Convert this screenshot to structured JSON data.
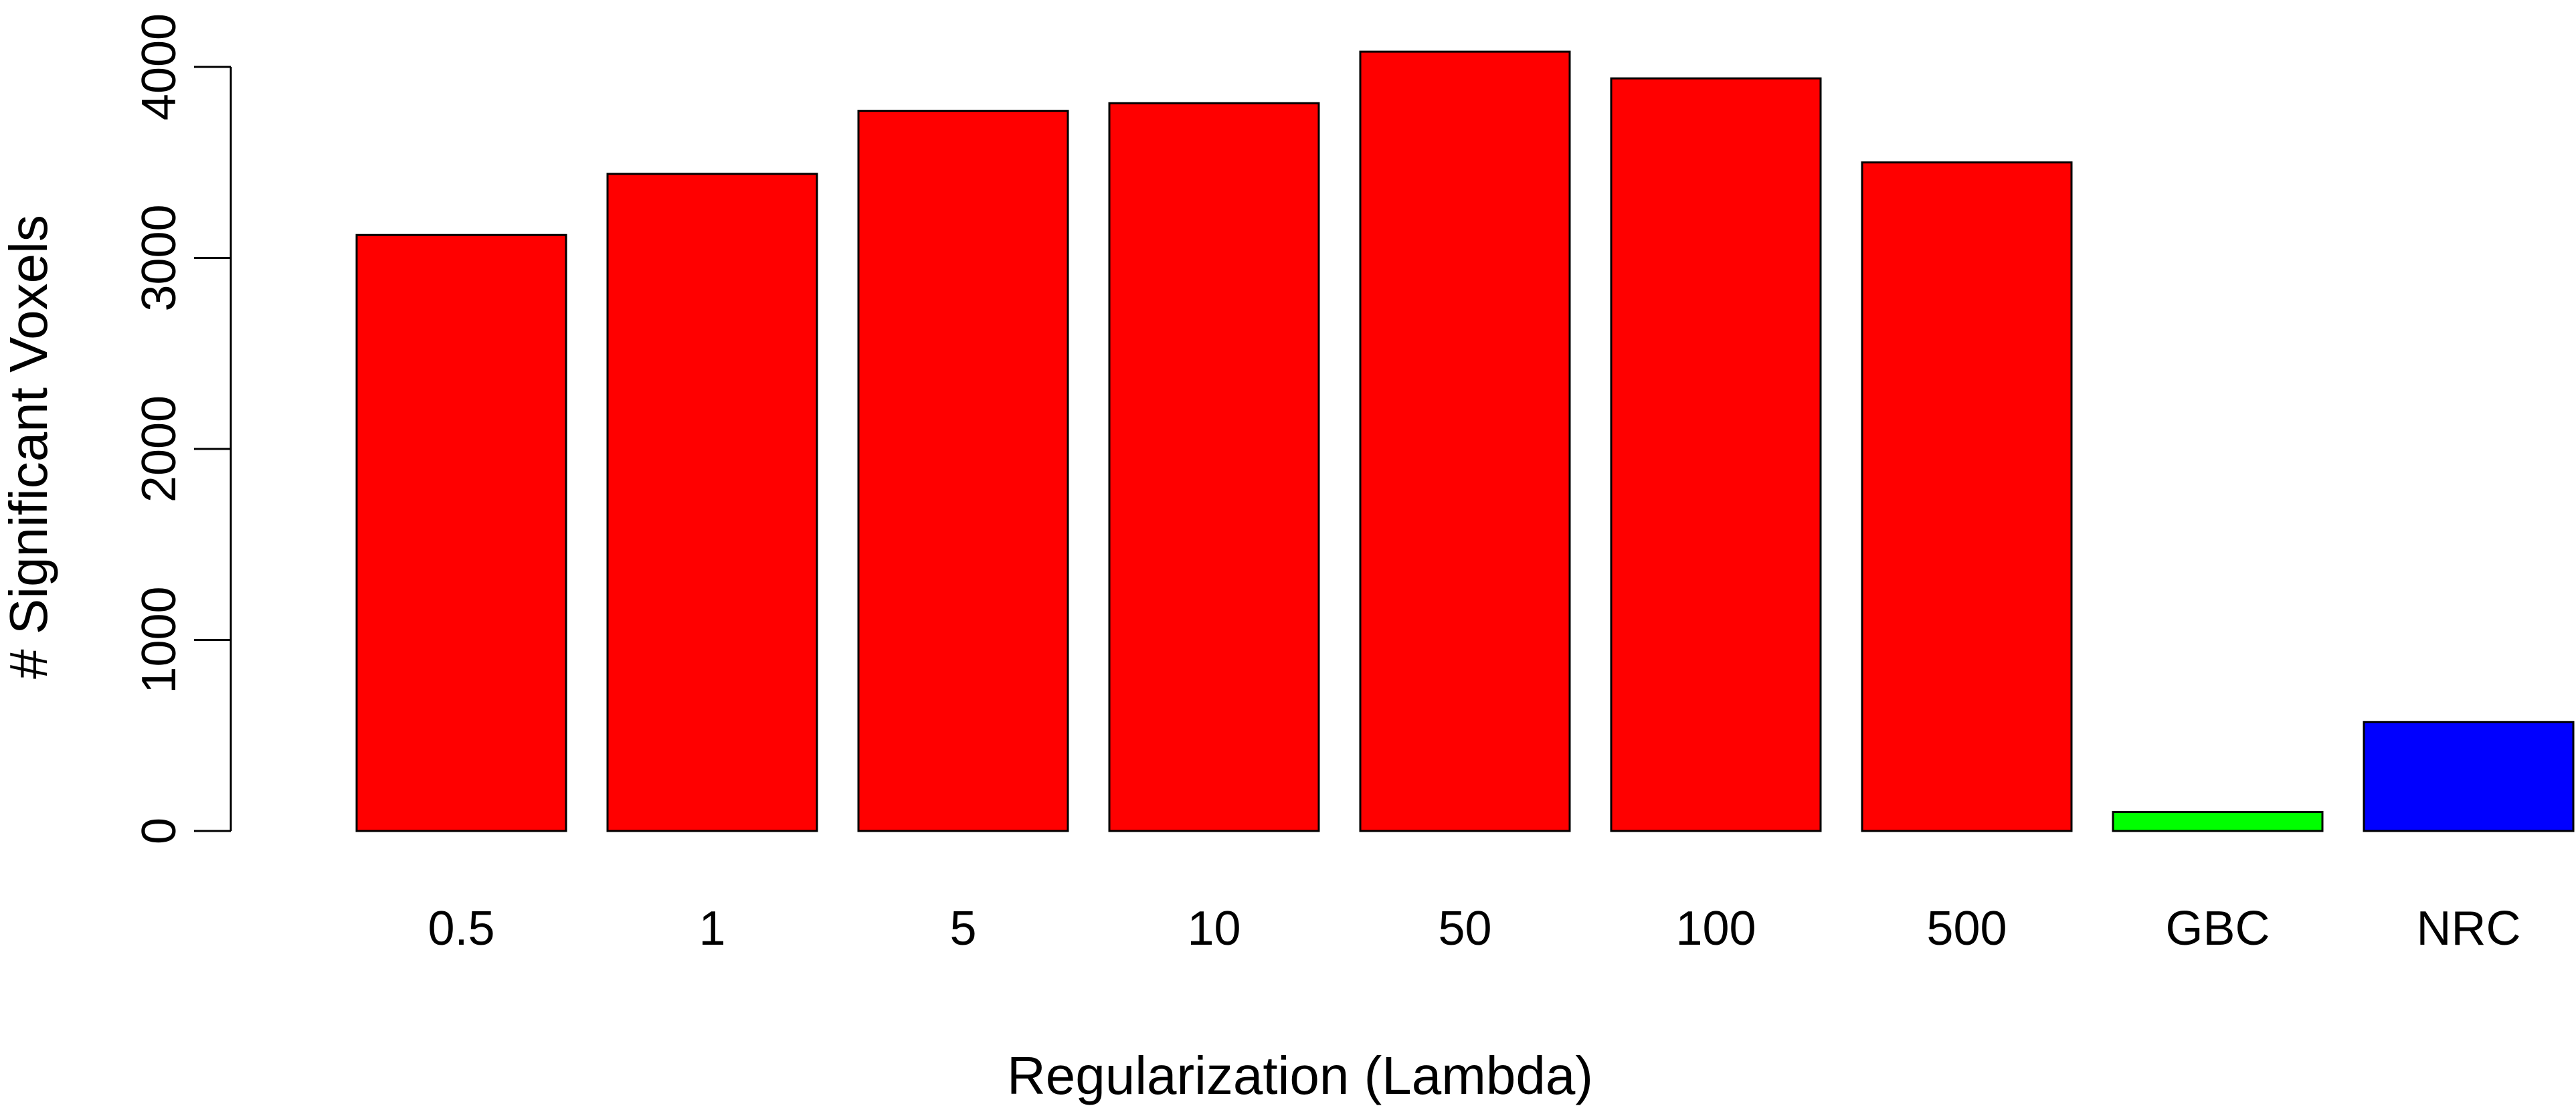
{
  "chart_data": {
    "type": "bar",
    "title": "",
    "xlabel": "Regularization (Lambda)",
    "ylabel": "# Significant Voxels",
    "categories": [
      "0.5",
      "1",
      "5",
      "10",
      "50",
      "100",
      "500",
      "GBC",
      "NRC"
    ],
    "values": [
      3120,
      3440,
      3770,
      3810,
      4080,
      3940,
      3500,
      100,
      570
    ],
    "bar_colors": [
      "#ff0000",
      "#ff0000",
      "#ff0000",
      "#ff0000",
      "#ff0000",
      "#ff0000",
      "#ff0000",
      "#00ff00",
      "#0000ff"
    ],
    "bar_outline_color": "#000000",
    "ylim": [
      0,
      4000
    ],
    "yticks": [
      0,
      1000,
      2000,
      3000,
      4000
    ],
    "ytick_labels": [
      "0",
      "1000",
      "2000",
      "3000",
      "4000"
    ],
    "grid": false,
    "legend": "none"
  }
}
